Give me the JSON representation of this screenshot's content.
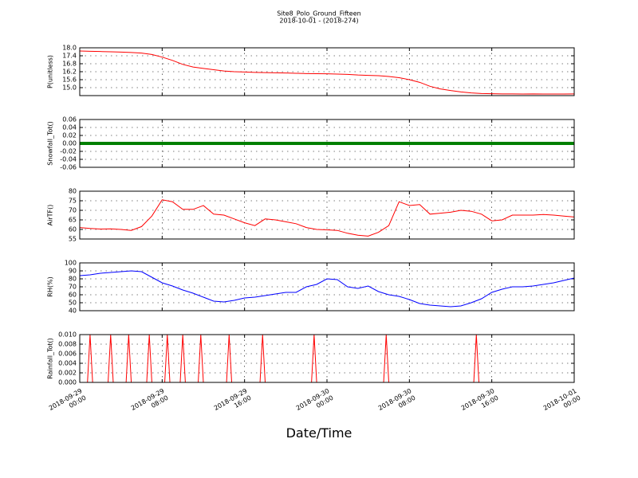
{
  "chart_data": [
    {
      "type": "line",
      "title": "Site8_Polo_Ground_Fifteen",
      "subtitle": "2018-10-01 - (2018-274)",
      "ylabel": "P(unitless)",
      "color": "#ff0000",
      "linewidth": 1,
      "ylim": [
        14.4,
        18.0
      ],
      "yticks": [
        {
          "value": 15,
          "label": "15.0"
        },
        15.6,
        16.2,
        16.8,
        17.4,
        {
          "value": 18,
          "label": "18.0"
        }
      ],
      "x": [
        "2018-09-29 00:00",
        "2018-09-29 01:00",
        "2018-09-29 02:00",
        "2018-09-29 03:00",
        "2018-09-29 04:00",
        "2018-09-29 05:00",
        "2018-09-29 06:00",
        "2018-09-29 07:00",
        "2018-09-29 08:00",
        "2018-09-29 09:00",
        "2018-09-29 10:00",
        "2018-09-29 11:00",
        "2018-09-29 12:00",
        "2018-09-29 13:00",
        "2018-09-29 14:00",
        "2018-09-29 15:00",
        "2018-09-29 16:00",
        "2018-09-29 17:00",
        "2018-09-29 18:00",
        "2018-09-29 19:00",
        "2018-09-29 20:00",
        "2018-09-29 21:00",
        "2018-09-29 22:00",
        "2018-09-29 23:00",
        "2018-09-30 00:00",
        "2018-09-30 01:00",
        "2018-09-30 02:00",
        "2018-09-30 03:00",
        "2018-09-30 04:00",
        "2018-09-30 05:00",
        "2018-09-30 06:00",
        "2018-09-30 07:00",
        "2018-09-30 08:00",
        "2018-09-30 09:00",
        "2018-09-30 10:00",
        "2018-09-30 11:00",
        "2018-09-30 12:00",
        "2018-09-30 13:00",
        "2018-09-30 14:00",
        "2018-09-30 15:00",
        "2018-09-30 16:00",
        "2018-09-30 17:00",
        "2018-09-30 18:00",
        "2018-09-30 19:00",
        "2018-09-30 20:00",
        "2018-09-30 21:00",
        "2018-09-30 22:00",
        "2018-09-30 23:00",
        "2018-10-01 00:00"
      ],
      "values": [
        17.76,
        17.74,
        17.72,
        17.7,
        17.68,
        17.65,
        17.6,
        17.5,
        17.3,
        17.05,
        16.75,
        16.55,
        16.45,
        16.35,
        16.25,
        16.2,
        16.18,
        16.15,
        16.13,
        16.12,
        16.1,
        16.08,
        16.06,
        16.05,
        16.04,
        16.02,
        16.0,
        15.95,
        15.92,
        15.9,
        15.84,
        15.75,
        15.6,
        15.4,
        15.1,
        14.9,
        14.78,
        14.68,
        14.6,
        14.56,
        14.54,
        14.53,
        14.53,
        14.52,
        14.53,
        14.52,
        14.52,
        14.52,
        14.53
      ]
    },
    {
      "type": "line",
      "ylabel": "Snowfall_Tot()",
      "color": "#008000",
      "linewidth": 4,
      "ylim": [
        -0.06,
        0.06
      ],
      "yticks": [
        -0.06,
        -0.04,
        -0.02,
        {
          "value": 0,
          "label": "0.00"
        },
        0.02,
        0.04,
        0.06
      ],
      "x": [
        "2018-09-29 00:00",
        "2018-09-29 01:00",
        "2018-09-29 02:00",
        "2018-09-29 03:00",
        "2018-09-29 04:00",
        "2018-09-29 05:00",
        "2018-09-29 06:00",
        "2018-09-29 07:00",
        "2018-09-29 08:00",
        "2018-09-29 09:00",
        "2018-09-29 10:00",
        "2018-09-29 11:00",
        "2018-09-29 12:00",
        "2018-09-29 13:00",
        "2018-09-29 14:00",
        "2018-09-29 15:00",
        "2018-09-29 16:00",
        "2018-09-29 17:00",
        "2018-09-29 18:00",
        "2018-09-29 19:00",
        "2018-09-29 20:00",
        "2018-09-29 21:00",
        "2018-09-29 22:00",
        "2018-09-29 23:00",
        "2018-09-30 00:00",
        "2018-09-30 01:00",
        "2018-09-30 02:00",
        "2018-09-30 03:00",
        "2018-09-30 04:00",
        "2018-09-30 05:00",
        "2018-09-30 06:00",
        "2018-09-30 07:00",
        "2018-09-30 08:00",
        "2018-09-30 09:00",
        "2018-09-30 10:00",
        "2018-09-30 11:00",
        "2018-09-30 12:00",
        "2018-09-30 13:00",
        "2018-09-30 14:00",
        "2018-09-30 15:00",
        "2018-09-30 16:00",
        "2018-09-30 17:00",
        "2018-09-30 18:00",
        "2018-09-30 19:00",
        "2018-09-30 20:00",
        "2018-09-30 21:00",
        "2018-09-30 22:00",
        "2018-09-30 23:00",
        "2018-10-01 00:00"
      ],
      "values": [
        0,
        0,
        0,
        0,
        0,
        0,
        0,
        0,
        0,
        0,
        0,
        0,
        0,
        0,
        0,
        0,
        0,
        0,
        0,
        0,
        0,
        0,
        0,
        0,
        0,
        0,
        0,
        0,
        0,
        0,
        0,
        0,
        0,
        0,
        0,
        0,
        0,
        0,
        0,
        0,
        0,
        0,
        0,
        0,
        0,
        0,
        0,
        0,
        0
      ]
    },
    {
      "type": "line",
      "ylabel": "AirTF()",
      "color": "#ff0000",
      "linewidth": 1,
      "ylim": [
        55,
        80
      ],
      "yticks": [
        55,
        60,
        65,
        70,
        75,
        80
      ],
      "x": [
        "2018-09-29 00:00",
        "2018-09-29 01:00",
        "2018-09-29 02:00",
        "2018-09-29 03:00",
        "2018-09-29 04:00",
        "2018-09-29 05:00",
        "2018-09-29 06:00",
        "2018-09-29 07:00",
        "2018-09-29 08:00",
        "2018-09-29 09:00",
        "2018-09-29 10:00",
        "2018-09-29 11:00",
        "2018-09-29 12:00",
        "2018-09-29 13:00",
        "2018-09-29 14:00",
        "2018-09-29 15:00",
        "2018-09-29 16:00",
        "2018-09-29 17:00",
        "2018-09-29 18:00",
        "2018-09-29 19:00",
        "2018-09-29 20:00",
        "2018-09-29 21:00",
        "2018-09-29 22:00",
        "2018-09-29 23:00",
        "2018-09-30 00:00",
        "2018-09-30 01:00",
        "2018-09-30 02:00",
        "2018-09-30 03:00",
        "2018-09-30 04:00",
        "2018-09-30 05:00",
        "2018-09-30 06:00",
        "2018-09-30 07:00",
        "2018-09-30 08:00",
        "2018-09-30 09:00",
        "2018-09-30 10:00",
        "2018-09-30 11:00",
        "2018-09-30 12:00",
        "2018-09-30 13:00",
        "2018-09-30 14:00",
        "2018-09-30 15:00",
        "2018-09-30 16:00",
        "2018-09-30 17:00",
        "2018-09-30 18:00",
        "2018-09-30 19:00",
        "2018-09-30 20:00",
        "2018-09-30 21:00",
        "2018-09-30 22:00",
        "2018-09-30 23:00",
        "2018-10-01 00:00"
      ],
      "values": [
        61,
        60.5,
        60.2,
        60.3,
        60,
        59.5,
        61.5,
        67,
        75.5,
        74.5,
        70.5,
        70.5,
        72.5,
        68,
        67.5,
        65.5,
        63.5,
        62,
        65.5,
        65,
        64,
        63,
        61,
        60,
        59.8,
        59.5,
        58,
        57,
        56.5,
        58.5,
        62,
        74.5,
        72.5,
        73,
        68,
        68.5,
        69,
        70,
        69.5,
        68,
        64.5,
        65,
        67.5,
        67.5,
        67.5,
        67.8,
        67.5,
        67,
        66.5
      ]
    },
    {
      "type": "line",
      "ylabel": "RH(%)",
      "color": "#0000ff",
      "linewidth": 1,
      "ylim": [
        40,
        100
      ],
      "yticks": [
        40,
        50,
        60,
        70,
        80,
        90,
        100
      ],
      "x": [
        "2018-09-29 00:00",
        "2018-09-29 01:00",
        "2018-09-29 02:00",
        "2018-09-29 03:00",
        "2018-09-29 04:00",
        "2018-09-29 05:00",
        "2018-09-29 06:00",
        "2018-09-29 07:00",
        "2018-09-29 08:00",
        "2018-09-29 09:00",
        "2018-09-29 10:00",
        "2018-09-29 11:00",
        "2018-09-29 12:00",
        "2018-09-29 13:00",
        "2018-09-29 14:00",
        "2018-09-29 15:00",
        "2018-09-29 16:00",
        "2018-09-29 17:00",
        "2018-09-29 18:00",
        "2018-09-29 19:00",
        "2018-09-29 20:00",
        "2018-09-29 21:00",
        "2018-09-29 22:00",
        "2018-09-29 23:00",
        "2018-09-30 00:00",
        "2018-09-30 01:00",
        "2018-09-30 02:00",
        "2018-09-30 03:00",
        "2018-09-30 04:00",
        "2018-09-30 05:00",
        "2018-09-30 06:00",
        "2018-09-30 07:00",
        "2018-09-30 08:00",
        "2018-09-30 09:00",
        "2018-09-30 10:00",
        "2018-09-30 11:00",
        "2018-09-30 12:00",
        "2018-09-30 13:00",
        "2018-09-30 14:00",
        "2018-09-30 15:00",
        "2018-09-30 16:00",
        "2018-09-30 17:00",
        "2018-09-30 18:00",
        "2018-09-30 19:00",
        "2018-09-30 20:00",
        "2018-09-30 21:00",
        "2018-09-30 22:00",
        "2018-09-30 23:00",
        "2018-10-01 00:00"
      ],
      "values": [
        84,
        85,
        87,
        88,
        89,
        90,
        89,
        82,
        75,
        71,
        66,
        62,
        57,
        52,
        51,
        53,
        56,
        57,
        59,
        61,
        63,
        63,
        70,
        73,
        80,
        79,
        70,
        68,
        71,
        64,
        60,
        58,
        54,
        49,
        47,
        46,
        45,
        46,
        50,
        55,
        63,
        67,
        70,
        70,
        71,
        73,
        75,
        78,
        81
      ]
    },
    {
      "type": "line",
      "ylabel": "Rainfall_Tot()",
      "xlabel": "Date/Time",
      "color": "#ff0000",
      "linewidth": 1,
      "ylim": [
        0,
        0.01
      ],
      "yticks": [
        {
          "value": 0,
          "label": "0.000"
        },
        {
          "value": 0.002,
          "label": "0.002"
        },
        {
          "value": 0.004,
          "label": "0.004"
        },
        {
          "value": 0.006,
          "label": "0.006"
        },
        {
          "value": 0.008,
          "label": "0.008"
        },
        {
          "value": 0.01,
          "label": "0.010"
        }
      ],
      "xlim": [
        "2018-09-29 00:00",
        "2018-10-01 00:00"
      ],
      "xticks": [
        {
          "value": "2018-09-29 00:00",
          "label": "2018-09-29\n00:00"
        },
        {
          "value": "2018-09-29 08:00",
          "label": "2018-09-29\n08:00"
        },
        {
          "value": "2018-09-29 16:00",
          "label": "2018-09-29\n16:00"
        },
        {
          "value": "2018-09-30 00:00",
          "label": "2018-09-30\n00:00"
        },
        {
          "value": "2018-09-30 08:00",
          "label": "2018-09-30\n08:00"
        },
        {
          "value": "2018-09-30 16:00",
          "label": "2018-09-30\n16:00"
        },
        {
          "value": "2018-10-01 00:00",
          "label": "2018-10-01\n00:00"
        }
      ],
      "x": [
        "2018-09-29 00:00",
        "2018-09-29 00:45",
        "2018-09-29 01:00",
        "2018-09-29 01:15",
        "2018-09-29 02:45",
        "2018-09-29 03:00",
        "2018-09-29 03:15",
        "2018-09-29 04:30",
        "2018-09-29 04:45",
        "2018-09-29 05:00",
        "2018-09-29 06:30",
        "2018-09-29 06:45",
        "2018-09-29 07:00",
        "2018-09-29 08:15",
        "2018-09-29 08:30",
        "2018-09-29 08:45",
        "2018-09-29 09:45",
        "2018-09-29 10:00",
        "2018-09-29 10:15",
        "2018-09-29 11:30",
        "2018-09-29 11:45",
        "2018-09-29 12:00",
        "2018-09-29 14:15",
        "2018-09-29 14:30",
        "2018-09-29 14:45",
        "2018-09-29 17:30",
        "2018-09-29 17:45",
        "2018-09-29 18:00",
        "2018-09-29 22:30",
        "2018-09-29 22:45",
        "2018-09-29 23:00",
        "2018-09-30 05:30",
        "2018-09-30 05:45",
        "2018-09-30 06:00",
        "2018-09-30 14:15",
        "2018-09-30 14:30",
        "2018-09-30 14:45",
        "2018-10-01 00:00"
      ],
      "values": [
        0,
        0,
        0.01,
        0,
        0,
        0.01,
        0,
        0,
        0.01,
        0,
        0,
        0.01,
        0,
        0,
        0.01,
        0,
        0,
        0.01,
        0,
        0,
        0.01,
        0,
        0,
        0.01,
        0,
        0,
        0.01,
        0,
        0,
        0.01,
        0,
        0,
        0.01,
        0,
        0,
        0.01,
        0,
        0
      ]
    }
  ]
}
